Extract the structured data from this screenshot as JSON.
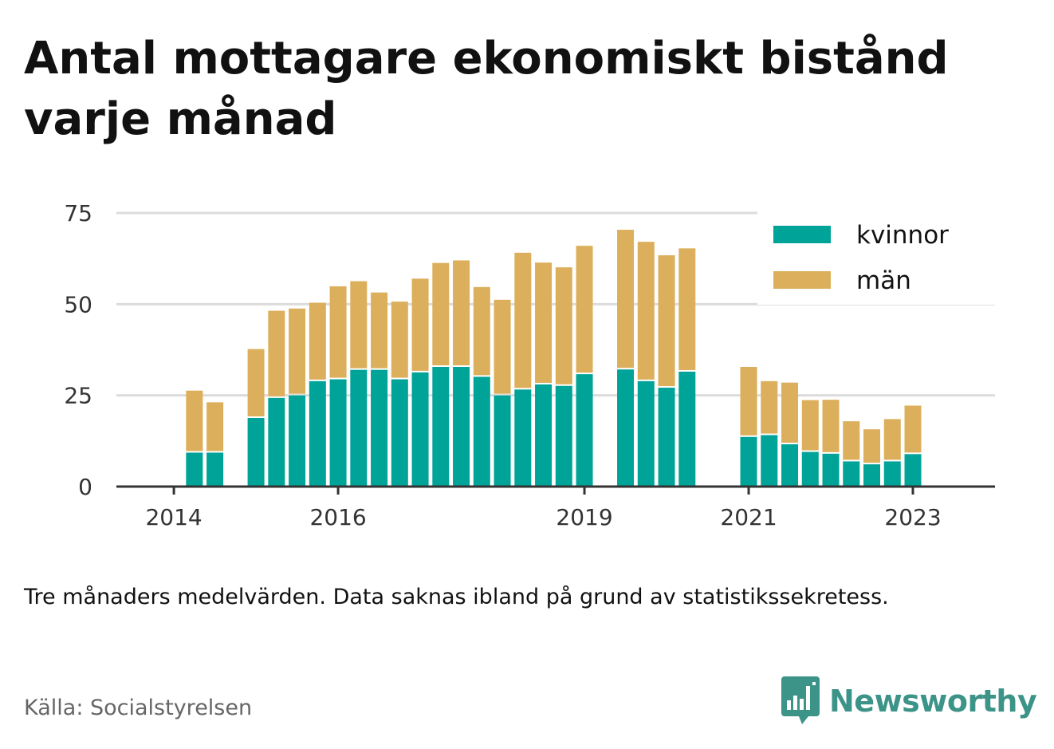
{
  "title": "Antal mottagare ekonomiskt bistånd varje månad",
  "note": "Tre månaders medelvärden. Data saknas ibland på grund av statistikssekretess.",
  "source": "Källa: Socialstyrelsen",
  "brand": {
    "name": "Newsworthy",
    "icon": "newsworthy-logo-icon",
    "color": "#3c9388"
  },
  "chart_data": {
    "type": "bar",
    "stacked": true,
    "title": "Antal mottagare ekonomiskt bistånd varje månad",
    "xlabel": "",
    "ylabel": "",
    "ylim": [
      0,
      75
    ],
    "yticks": [
      0,
      25,
      50,
      75
    ],
    "xticks": [
      "2014",
      "2016",
      "2019",
      "2021",
      "2023"
    ],
    "xtick_positions": [
      2014.0,
      2016.0,
      2019.0,
      2021.0,
      2023.0
    ],
    "xlim": [
      2013.3,
      2024.0
    ],
    "grid": true,
    "legend": "top-right",
    "colors": {
      "kvinnor": "#00a398",
      "män": "#dcaf5c"
    },
    "x": [
      2014.25,
      2014.5,
      2015.0,
      2015.25,
      2015.5,
      2015.75,
      2016.0,
      2016.25,
      2016.5,
      2016.75,
      2017.0,
      2017.25,
      2017.5,
      2017.75,
      2018.0,
      2018.25,
      2018.5,
      2018.75,
      2019.0,
      2019.5,
      2019.75,
      2020.0,
      2020.25,
      2021.0,
      2021.25,
      2021.5,
      2021.75,
      2022.0,
      2022.25,
      2022.5,
      2022.75,
      2023.0
    ],
    "series": [
      {
        "name": "kvinnor",
        "values": [
          9.3,
          9.3,
          18.8,
          24.3,
          25.0,
          28.9,
          29.4,
          32.0,
          32.0,
          29.4,
          31.3,
          32.8,
          32.8,
          30.1,
          25.0,
          26.6,
          28.0,
          27.6,
          30.8,
          32.1,
          28.9,
          27.1,
          31.5,
          13.6,
          14.1,
          11.6,
          9.5,
          9.0,
          6.9,
          6.1,
          6.9,
          8.9
        ]
      },
      {
        "name": "män",
        "values": [
          17.0,
          13.8,
          18.9,
          23.9,
          23.8,
          21.5,
          25.5,
          24.3,
          21.2,
          21.3,
          25.7,
          28.5,
          29.2,
          24.6,
          26.2,
          37.5,
          33.4,
          32.5,
          35.2,
          38.3,
          38.2,
          36.3,
          33.8,
          19.2,
          14.8,
          16.9,
          14.2,
          14.8,
          11.0,
          9.6,
          11.6,
          13.3
        ]
      }
    ]
  }
}
